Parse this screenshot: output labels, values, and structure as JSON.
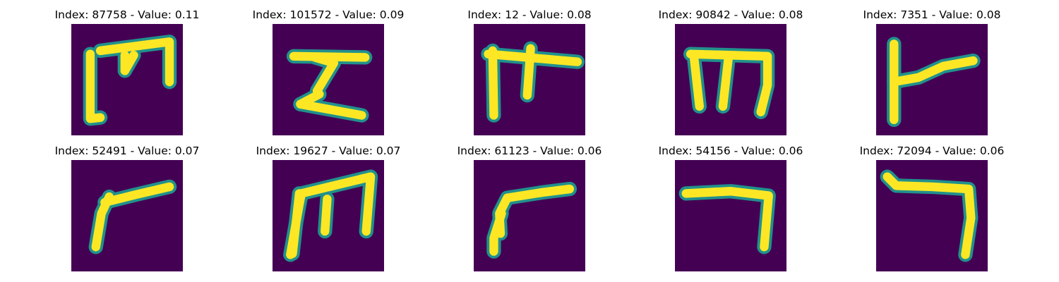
{
  "stroke_color": "#fde725",
  "edge_color": "#21918c",
  "background_color": "#440154",
  "panels": [
    {
      "title": "Index: 87758 - Value: 0.11",
      "strokes": [
        [
          [
            0.17,
            0.27
          ],
          [
            0.17,
            0.85
          ],
          [
            0.26,
            0.84
          ]
        ],
        [
          [
            0.26,
            0.24
          ],
          [
            0.88,
            0.16
          ],
          [
            0.88,
            0.52
          ]
        ],
        [
          [
            0.48,
            0.28
          ],
          [
            0.48,
            0.42
          ],
          [
            0.56,
            0.28
          ]
        ]
      ]
    },
    {
      "title": "Index: 101572 - Value: 0.09",
      "strokes": [
        [
          [
            0.19,
            0.29
          ],
          [
            0.83,
            0.3
          ]
        ],
        [
          [
            0.38,
            0.3
          ],
          [
            0.55,
            0.35
          ],
          [
            0.4,
            0.6
          ],
          [
            0.42,
            0.63
          ],
          [
            0.25,
            0.72
          ]
        ],
        [
          [
            0.25,
            0.72
          ],
          [
            0.8,
            0.82
          ]
        ]
      ]
    },
    {
      "title": "Index: 12 - Value: 0.08",
      "strokes": [
        [
          [
            0.13,
            0.27
          ],
          [
            0.93,
            0.34
          ]
        ],
        [
          [
            0.17,
            0.24
          ],
          [
            0.18,
            0.82
          ]
        ],
        [
          [
            0.51,
            0.22
          ],
          [
            0.48,
            0.64
          ]
        ]
      ]
    },
    {
      "title": "Index: 90842 - Value: 0.08",
      "strokes": [
        [
          [
            0.14,
            0.27
          ],
          [
            0.83,
            0.29
          ],
          [
            0.83,
            0.55
          ],
          [
            0.77,
            0.79
          ]
        ],
        [
          [
            0.17,
            0.29
          ],
          [
            0.22,
            0.74
          ]
        ],
        [
          [
            0.48,
            0.3
          ],
          [
            0.43,
            0.74
          ]
        ]
      ]
    },
    {
      "title": "Index: 7351 - Value: 0.08",
      "strokes": [
        [
          [
            0.16,
            0.18
          ],
          [
            0.16,
            0.86
          ]
        ],
        [
          [
            0.16,
            0.52
          ],
          [
            0.38,
            0.48
          ],
          [
            0.6,
            0.38
          ],
          [
            0.87,
            0.33
          ]
        ]
      ]
    },
    {
      "title": "Index: 52491 - Value: 0.07",
      "strokes": [
        [
          [
            0.22,
            0.78
          ],
          [
            0.27,
            0.48
          ],
          [
            0.34,
            0.33
          ]
        ],
        [
          [
            0.3,
            0.38
          ],
          [
            0.58,
            0.31
          ],
          [
            0.88,
            0.24
          ]
        ]
      ]
    },
    {
      "title": "Index: 19627 - Value: 0.07",
      "strokes": [
        [
          [
            0.16,
            0.85
          ],
          [
            0.24,
            0.4
          ],
          [
            0.26,
            0.3
          ],
          [
            0.88,
            0.15
          ],
          [
            0.84,
            0.64
          ]
        ],
        [
          [
            0.49,
            0.35
          ],
          [
            0.47,
            0.64
          ]
        ],
        [
          [
            0.24,
            0.3
          ],
          [
            0.18,
            0.84
          ]
        ]
      ]
    },
    {
      "title": "Index: 61123 - Value: 0.06",
      "strokes": [
        [
          [
            0.24,
            0.66
          ],
          [
            0.23,
            0.48
          ],
          [
            0.3,
            0.34
          ],
          [
            0.62,
            0.29
          ],
          [
            0.86,
            0.26
          ]
        ],
        [
          [
            0.25,
            0.48
          ],
          [
            0.18,
            0.7
          ],
          [
            0.18,
            0.82
          ]
        ]
      ]
    },
    {
      "title": "Index: 54156 - Value: 0.06",
      "strokes": [
        [
          [
            0.1,
            0.3
          ],
          [
            0.5,
            0.28
          ],
          [
            0.84,
            0.32
          ],
          [
            0.82,
            0.55
          ],
          [
            0.8,
            0.78
          ]
        ]
      ]
    },
    {
      "title": "Index: 72094 - Value: 0.06",
      "strokes": [
        [
          [
            0.1,
            0.15
          ],
          [
            0.18,
            0.23
          ],
          [
            0.5,
            0.24
          ],
          [
            0.83,
            0.26
          ],
          [
            0.85,
            0.52
          ],
          [
            0.8,
            0.85
          ]
        ]
      ]
    }
  ]
}
